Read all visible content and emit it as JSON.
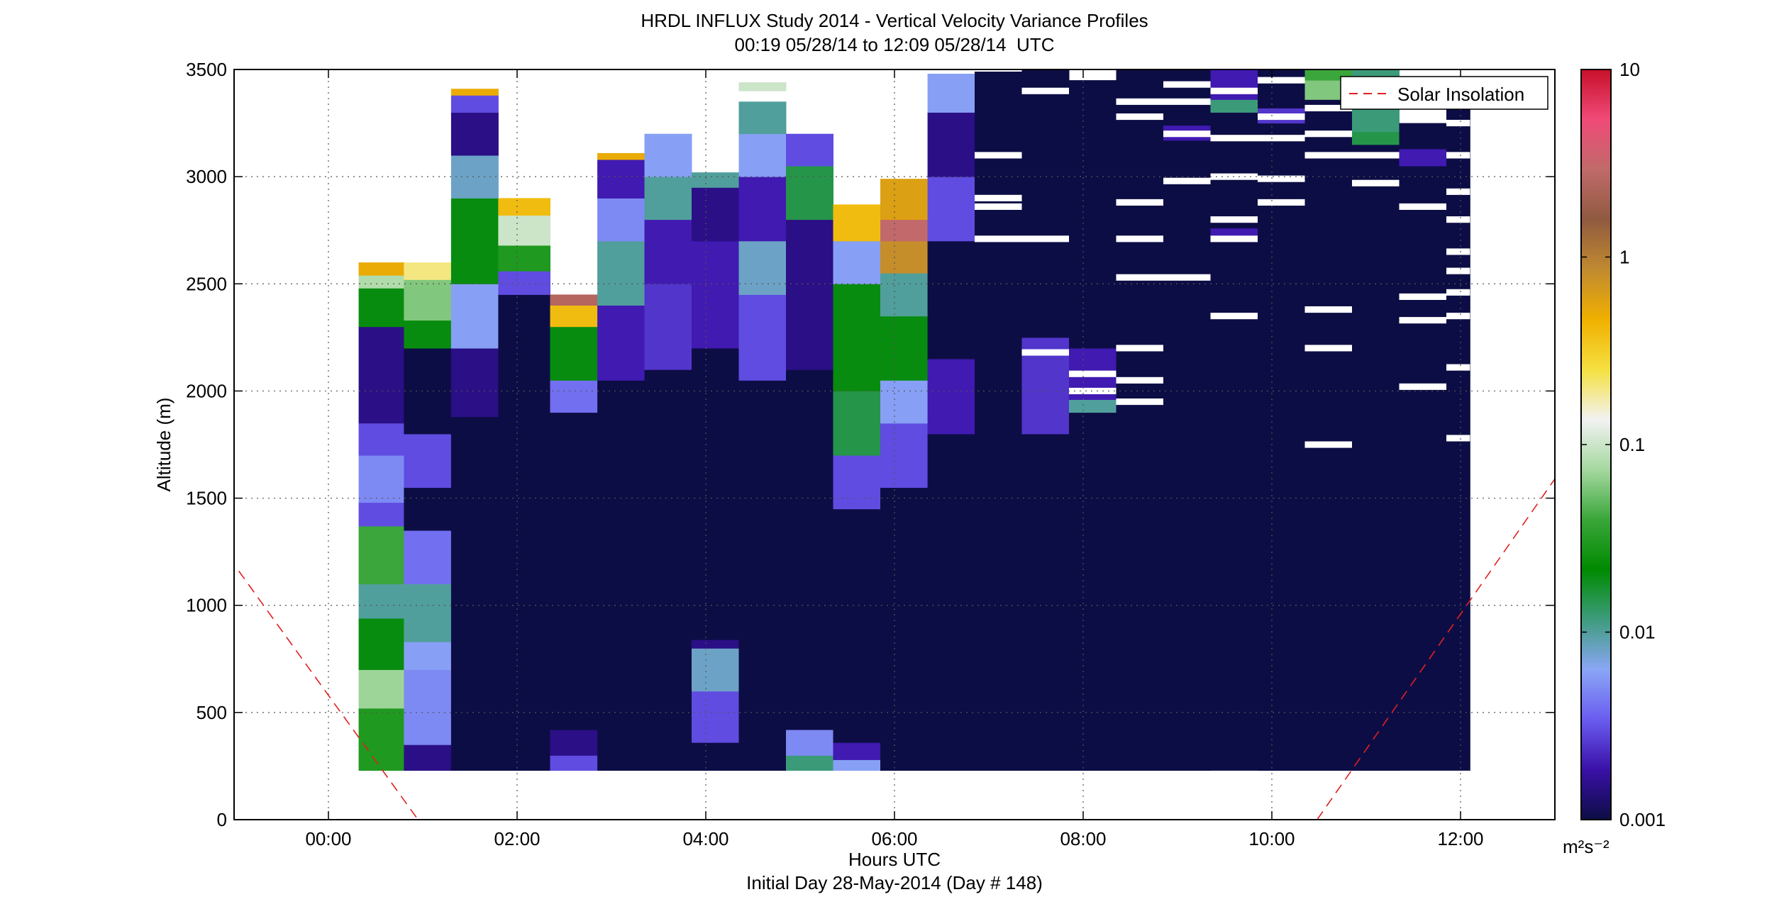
{
  "chart_data": {
    "type": "heatmap",
    "title": "HRDL INFLUX Study 2014 - Vertical Velocity Variance Profiles",
    "subtitle": "00:19 05/28/14 to 12:09 05/28/14  UTC",
    "xlabel": "Hours UTC",
    "xlabel2": "Initial Day 28-May-2014 (Day # 148)",
    "ylabel": "Altitude (m)",
    "xlim_hours": [
      -1.0,
      13.0
    ],
    "ylim": [
      0,
      3500
    ],
    "x_ticks": [
      {
        "value": 0,
        "label": "00:00"
      },
      {
        "value": 2,
        "label": "02:00"
      },
      {
        "value": 4,
        "label": "04:00"
      },
      {
        "value": 6,
        "label": "06:00"
      },
      {
        "value": 8,
        "label": "08:00"
      },
      {
        "value": 10,
        "label": "10:00"
      },
      {
        "value": 12,
        "label": "12:00"
      }
    ],
    "y_ticks": [
      {
        "value": 0,
        "label": "0"
      },
      {
        "value": 500,
        "label": "500"
      },
      {
        "value": 1000,
        "label": "1000"
      },
      {
        "value": 1500,
        "label": "1500"
      },
      {
        "value": 2000,
        "label": "2000"
      },
      {
        "value": 2500,
        "label": "2500"
      },
      {
        "value": 3000,
        "label": "3000"
      },
      {
        "value": 3500,
        "label": "3500"
      }
    ],
    "grid": true,
    "colorbar": {
      "scale": "log",
      "min": 0.001,
      "max": 10,
      "units": "m²s⁻²",
      "ticks": [
        {
          "value": 0.001,
          "label": "0.001"
        },
        {
          "value": 0.01,
          "label": "0.01"
        },
        {
          "value": 0.1,
          "label": "0.1"
        },
        {
          "value": 1,
          "label": "1"
        },
        {
          "value": 10,
          "label": "10"
        }
      ],
      "stops": [
        "#0d0d45",
        "#3a10a8",
        "#6a5cf0",
        "#8aa6f5",
        "#3e9c7e",
        "#008a00",
        "#3aa63a",
        "#a6d8a0",
        "#f2f2f2",
        "#f5e040",
        "#f0b000",
        "#c08a30",
        "#905a40",
        "#c06a6a",
        "#f04a78",
        "#c8102a"
      ]
    },
    "legend": {
      "position": "top-right",
      "entries": [
        "Solar Insolation"
      ]
    },
    "base_altitude": 230,
    "gate_height": 30,
    "profiles": [
      {
        "start": 0.32,
        "end": 0.8,
        "top": 2600,
        "layers": [
          [
            230,
            520,
            0.03
          ],
          [
            520,
            700,
            0.07
          ],
          [
            700,
            940,
            0.02
          ],
          [
            940,
            1100,
            0.01
          ],
          [
            1100,
            1370,
            0.04
          ],
          [
            1370,
            1480,
            0.003
          ],
          [
            1480,
            1700,
            0.005
          ],
          [
            1700,
            1850,
            0.003
          ],
          [
            1850,
            2300,
            0.0015
          ],
          [
            2300,
            2480,
            0.02
          ],
          [
            2480,
            2540,
            0.08
          ],
          [
            2540,
            2600,
            0.5
          ]
        ]
      },
      {
        "start": 0.8,
        "end": 1.3,
        "top": 2600,
        "layers": [
          [
            230,
            350,
            0.0015
          ],
          [
            350,
            700,
            0.005
          ],
          [
            700,
            830,
            0.006
          ],
          [
            830,
            1100,
            0.01
          ],
          [
            1100,
            1350,
            0.004
          ],
          [
            1350,
            1550,
            0.001
          ],
          [
            1550,
            1800,
            0.003
          ],
          [
            1800,
            2200,
            0.001
          ],
          [
            2200,
            2330,
            0.02
          ],
          [
            2330,
            2520,
            0.06
          ],
          [
            2520,
            2600,
            0.2
          ]
        ]
      },
      {
        "start": 1.3,
        "end": 1.8,
        "top": 3410,
        "layers": [
          [
            230,
            1880,
            0.001
          ],
          [
            1880,
            2200,
            0.0015
          ],
          [
            2200,
            2500,
            0.006
          ],
          [
            2500,
            2900,
            0.02
          ],
          [
            2900,
            3100,
            0.008
          ],
          [
            3100,
            3300,
            0.0015
          ],
          [
            3300,
            3380,
            0.003
          ],
          [
            3380,
            3410,
            0.5
          ]
        ]
      },
      {
        "start": 1.8,
        "end": 2.35,
        "top": 2900,
        "layers": [
          [
            230,
            2450,
            0.001
          ],
          [
            2450,
            2560,
            0.003
          ],
          [
            2560,
            2680,
            0.03
          ],
          [
            2680,
            2820,
            0.1
          ],
          [
            2820,
            2900,
            0.4
          ]
        ]
      },
      {
        "start": 2.35,
        "end": 2.85,
        "top": 2450,
        "layers": [
          [
            230,
            300,
            0.003
          ],
          [
            300,
            420,
            0.0015
          ],
          [
            420,
            1900,
            0.001
          ],
          [
            1900,
            2050,
            0.004
          ],
          [
            2050,
            2300,
            0.02
          ],
          [
            2300,
            2400,
            0.4
          ],
          [
            2400,
            2450,
            2.5
          ]
        ]
      },
      {
        "start": 2.85,
        "end": 3.35,
        "top": 3110,
        "layers": [
          [
            230,
            2050,
            0.001
          ],
          [
            2050,
            2400,
            0.002
          ],
          [
            2400,
            2700,
            0.01
          ],
          [
            2700,
            2900,
            0.005
          ],
          [
            2900,
            3080,
            0.002
          ],
          [
            3080,
            3110,
            0.5
          ]
        ]
      },
      {
        "start": 3.35,
        "end": 3.85,
        "top": 3200,
        "layers": [
          [
            230,
            2100,
            0.001
          ],
          [
            2100,
            2500,
            0.0025
          ],
          [
            2500,
            2800,
            0.002
          ],
          [
            2800,
            3000,
            0.01
          ],
          [
            3000,
            3200,
            0.006
          ]
        ]
      },
      {
        "start": 3.85,
        "end": 4.35,
        "top": 3020,
        "layers": [
          [
            230,
            360,
            0.001
          ],
          [
            360,
            600,
            0.003
          ],
          [
            600,
            800,
            0.008
          ],
          [
            800,
            840,
            0.0015
          ],
          [
            840,
            2200,
            0.001
          ],
          [
            2200,
            2700,
            0.002
          ],
          [
            2700,
            2950,
            0.0015
          ],
          [
            2950,
            3020,
            0.01
          ]
        ]
      },
      {
        "start": 4.35,
        "end": 4.85,
        "top": 3350,
        "layers": [
          [
            230,
            2050,
            0.001
          ],
          [
            2050,
            2450,
            0.003
          ],
          [
            2450,
            2700,
            0.008
          ],
          [
            2700,
            3000,
            0.002
          ],
          [
            3000,
            3200,
            0.006
          ],
          [
            3200,
            3350,
            0.01
          ],
          [
            3400,
            3440,
            0.1
          ]
        ]
      },
      {
        "start": 4.85,
        "end": 5.35,
        "top": 3200,
        "layers": [
          [
            230,
            300,
            0.012
          ],
          [
            300,
            420,
            0.005
          ],
          [
            420,
            2100,
            0.001
          ],
          [
            2100,
            2800,
            0.0015
          ],
          [
            2800,
            3050,
            0.015
          ],
          [
            3050,
            3200,
            0.003
          ]
        ]
      },
      {
        "start": 5.35,
        "end": 5.85,
        "top": 2870,
        "layers": [
          [
            230,
            280,
            0.006
          ],
          [
            280,
            360,
            0.002
          ],
          [
            360,
            1450,
            0.001
          ],
          [
            1450,
            1700,
            0.003
          ],
          [
            1700,
            2000,
            0.015
          ],
          [
            2000,
            2500,
            0.02
          ],
          [
            2500,
            2700,
            0.006
          ],
          [
            2700,
            2870,
            0.4
          ]
        ]
      },
      {
        "start": 5.85,
        "end": 6.35,
        "top": 2990,
        "layers": [
          [
            230,
            1550,
            0.001
          ],
          [
            1550,
            1850,
            0.003
          ],
          [
            1850,
            2050,
            0.006
          ],
          [
            2050,
            2350,
            0.02
          ],
          [
            2350,
            2550,
            0.01
          ],
          [
            2550,
            2700,
            0.8
          ],
          [
            2700,
            2800,
            3
          ],
          [
            2800,
            2990,
            0.6
          ]
        ]
      },
      {
        "start": 6.35,
        "end": 6.85,
        "top": 3480,
        "layers": [
          [
            230,
            1800,
            0.001
          ],
          [
            1800,
            2150,
            0.002
          ],
          [
            2150,
            2700,
            0.001
          ],
          [
            2700,
            3000,
            0.003
          ],
          [
            3000,
            3300,
            0.0015
          ],
          [
            3300,
            3480,
            0.006
          ]
        ]
      },
      {
        "start": 6.85,
        "end": 7.35,
        "top": 3490,
        "layers": [
          [
            230,
            3490,
            0.001
          ]
        ]
      },
      {
        "start": 7.35,
        "end": 7.85,
        "top": 3500,
        "layers": [
          [
            230,
            1800,
            0.001
          ],
          [
            1800,
            2250,
            0.0025
          ],
          [
            2250,
            3500,
            0.001
          ]
        ]
      },
      {
        "start": 7.85,
        "end": 8.35,
        "top": 3450,
        "layers": [
          [
            230,
            1900,
            0.001
          ],
          [
            1900,
            1960,
            0.01
          ],
          [
            1960,
            2200,
            0.002
          ],
          [
            2200,
            3450,
            0.001
          ]
        ]
      },
      {
        "start": 8.35,
        "end": 8.85,
        "top": 3500,
        "layers": [
          [
            230,
            3500,
            0.001
          ]
        ]
      },
      {
        "start": 8.85,
        "end": 9.35,
        "top": 3500,
        "layers": [
          [
            230,
            3170,
            0.001
          ],
          [
            3170,
            3240,
            0.002
          ],
          [
            3240,
            3500,
            0.001
          ]
        ]
      },
      {
        "start": 9.35,
        "end": 9.85,
        "top": 3500,
        "layers": [
          [
            230,
            2700,
            0.001
          ],
          [
            2700,
            2760,
            0.002
          ],
          [
            2760,
            3300,
            0.001
          ],
          [
            3300,
            3360,
            0.012
          ],
          [
            3360,
            3500,
            0.002
          ]
        ]
      },
      {
        "start": 9.85,
        "end": 10.35,
        "top": 3500,
        "layers": [
          [
            230,
            3250,
            0.001
          ],
          [
            3250,
            3320,
            0.0025
          ],
          [
            3320,
            3500,
            0.001
          ]
        ]
      },
      {
        "start": 10.35,
        "end": 10.85,
        "top": 3500,
        "layers": [
          [
            230,
            3360,
            0.001
          ],
          [
            3360,
            3450,
            0.06
          ],
          [
            3450,
            3500,
            0.04
          ]
        ]
      },
      {
        "start": 10.85,
        "end": 11.35,
        "top": 3500,
        "layers": [
          [
            230,
            3150,
            0.001
          ],
          [
            3150,
            3210,
            0.015
          ],
          [
            3210,
            3500,
            0.012
          ]
        ]
      },
      {
        "start": 11.35,
        "end": 11.85,
        "top": 3250,
        "layers": [
          [
            230,
            3050,
            0.001
          ],
          [
            3050,
            3130,
            0.002
          ],
          [
            3130,
            3250,
            0.001
          ]
        ]
      },
      {
        "start": 11.85,
        "end": 12.1,
        "top": 3350,
        "layers": [
          [
            230,
            3350,
            0.001
          ]
        ]
      }
    ],
    "missing_gates": [
      {
        "start": 6.85,
        "end": 7.35,
        "alts": [
          3100,
          2900,
          2860,
          2710
        ]
      },
      {
        "start": 7.35,
        "end": 7.85,
        "alts": [
          3400,
          2710,
          2180
        ]
      },
      {
        "start": 7.85,
        "end": 8.35,
        "alts": [
          2080,
          2000
        ]
      },
      {
        "start": 8.35,
        "end": 8.85,
        "alts": [
          3350,
          3280,
          2880,
          2710,
          2530,
          2200,
          2050,
          1950
        ]
      },
      {
        "start": 8.85,
        "end": 9.35,
        "alts": [
          3430,
          3350,
          3200,
          2980,
          2530
        ]
      },
      {
        "start": 9.35,
        "end": 9.85,
        "alts": [
          3400,
          3180,
          3000,
          2800,
          2710,
          2350
        ]
      },
      {
        "start": 9.85,
        "end": 10.35,
        "alts": [
          3450,
          3280,
          3180,
          2990,
          2880
        ]
      },
      {
        "start": 10.35,
        "end": 10.85,
        "alts": [
          3320,
          3200,
          3100,
          2380,
          2200,
          1750
        ]
      },
      {
        "start": 10.85,
        "end": 11.35,
        "alts": [
          3100,
          2970
        ]
      },
      {
        "start": 11.35,
        "end": 11.85,
        "alts": [
          2860,
          2440,
          2330,
          2020
        ]
      },
      {
        "start": 11.85,
        "end": 12.1,
        "alts": [
          3250,
          3100,
          2930,
          2800,
          2650,
          2560,
          2460,
          2350,
          2110,
          1780
        ]
      }
    ],
    "solar_insolation": {
      "color": "#e02020",
      "segments": [
        {
          "x": [
            -0.95,
            0.95
          ],
          "y": [
            1160,
            0
          ]
        },
        {
          "x": [
            10.48,
            13.0
          ],
          "y": [
            0,
            1590
          ]
        }
      ]
    }
  }
}
